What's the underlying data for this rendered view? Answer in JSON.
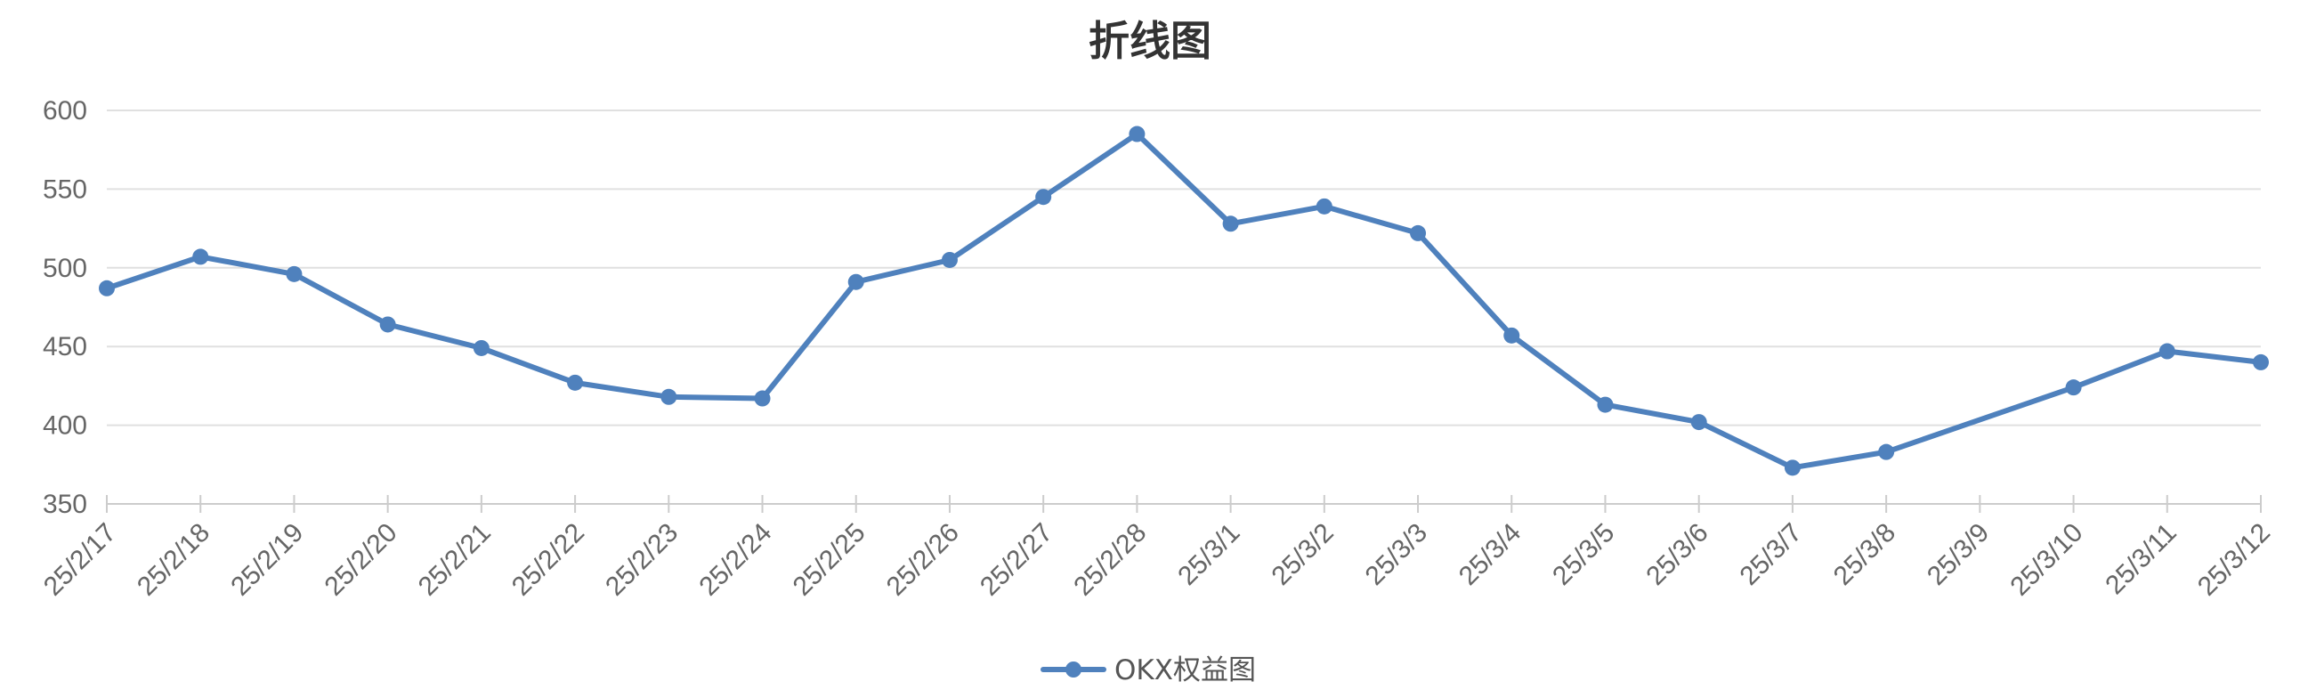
{
  "chart_data": {
    "type": "line",
    "title": "折线图",
    "xlabel": "",
    "ylabel": "",
    "ylim": [
      350,
      600
    ],
    "yticks": [
      350,
      400,
      450,
      500,
      550,
      600
    ],
    "grid": true,
    "legend_position": "bottom-center",
    "categories": [
      "25/2/17",
      "25/2/18",
      "25/2/19",
      "25/2/20",
      "25/2/21",
      "25/2/22",
      "25/2/23",
      "25/2/24",
      "25/2/25",
      "25/2/26",
      "25/2/27",
      "25/2/28",
      "25/3/1",
      "25/3/2",
      "25/3/3",
      "25/3/4",
      "25/3/5",
      "25/3/6",
      "25/3/7",
      "25/3/8",
      "25/3/9",
      "25/3/10",
      "25/3/11",
      "25/3/12"
    ],
    "series": [
      {
        "name": "OKX权益图",
        "color": "#4f81bd",
        "values": [
          487,
          507,
          496,
          464,
          449,
          427,
          418,
          417,
          491,
          505,
          545,
          585,
          528,
          539,
          522,
          457,
          413,
          402,
          373,
          383,
          null,
          424,
          447,
          440
        ]
      }
    ]
  }
}
